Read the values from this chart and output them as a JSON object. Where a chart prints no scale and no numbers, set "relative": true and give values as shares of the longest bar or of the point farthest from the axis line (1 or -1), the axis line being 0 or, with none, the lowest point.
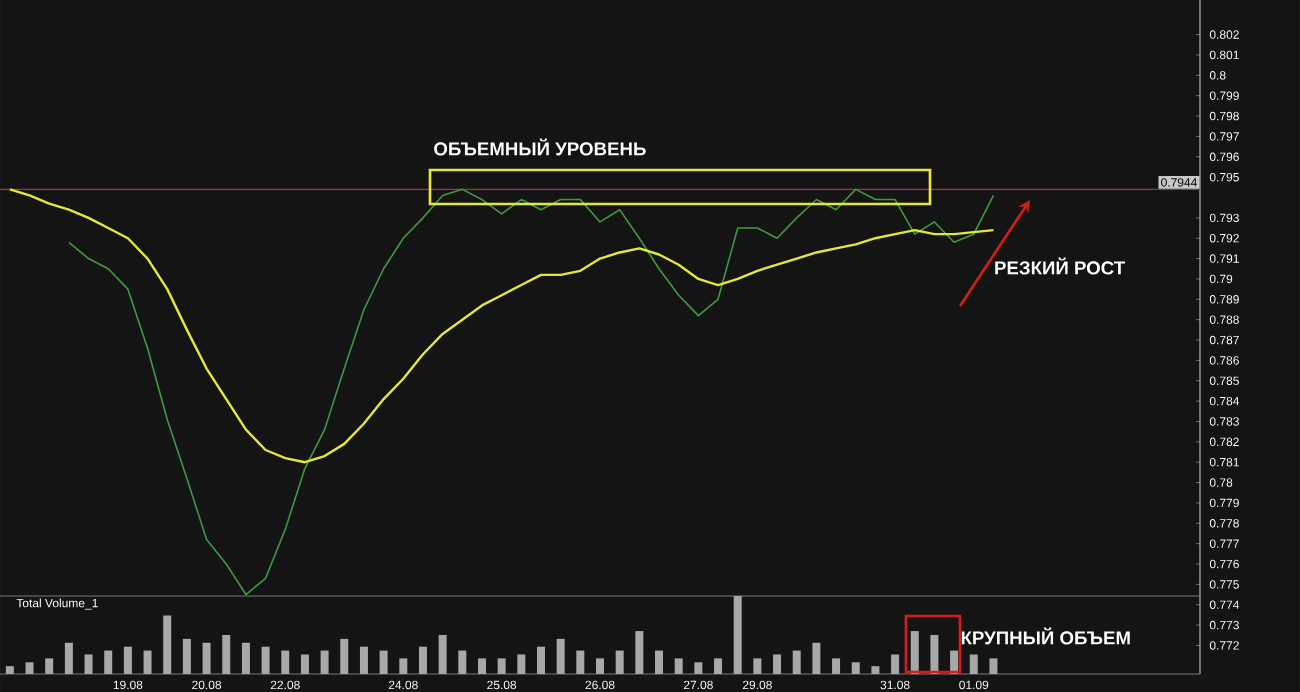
{
  "chart_data": [
    {
      "type": "line",
      "categories": [
        null,
        null,
        null,
        null,
        null,
        null,
        "19.08",
        null,
        null,
        null,
        "20.08",
        null,
        null,
        null,
        "22.08",
        null,
        null,
        null,
        null,
        null,
        "24.08",
        null,
        null,
        null,
        null,
        "25.08",
        null,
        null,
        null,
        null,
        "26.08",
        null,
        null,
        null,
        null,
        "27.08",
        null,
        null,
        "29.08",
        null,
        null,
        null,
        null,
        null,
        null,
        "31.08",
        null,
        null,
        null,
        "01.09",
        null
      ],
      "series": [
        {
          "color": "#3f9a3f",
          "values": [
            null,
            null,
            null,
            0.7918,
            0.791,
            0.7905,
            0.7895,
            0.7866,
            0.7831,
            0.7802,
            0.7772,
            0.776,
            0.7745,
            0.7753,
            0.7777,
            0.7807,
            0.7826,
            0.7856,
            0.7885,
            0.7905,
            0.792,
            0.793,
            0.7941,
            0.7944,
            0.7939,
            0.7932,
            0.7939,
            0.7934,
            0.7939,
            0.7939,
            0.7928,
            0.7934,
            0.792,
            0.7905,
            0.7892,
            0.7882,
            0.789,
            0.7925,
            0.7925,
            0.792,
            0.793,
            0.7939,
            0.7934,
            0.7944,
            0.7939,
            0.7939,
            0.7922,
            0.7928,
            0.7918,
            0.7922,
            0.7941
          ]
        },
        {
          "color": "#e6e63c",
          "values": [
            0.7944,
            0.7941,
            0.7937,
            0.7934,
            0.793,
            0.7925,
            0.792,
            0.791,
            0.7895,
            0.7875,
            0.7856,
            0.7841,
            0.7826,
            0.7816,
            0.7812,
            0.781,
            0.7813,
            0.7819,
            0.7829,
            0.7841,
            0.7851,
            0.7863,
            0.7873,
            0.788,
            0.7887,
            0.7892,
            0.7897,
            0.7902,
            0.7902,
            0.7904,
            0.791,
            0.7913,
            0.7915,
            0.7912,
            0.7907,
            0.79,
            0.7897,
            0.79,
            0.7904,
            0.7907,
            0.791,
            0.7913,
            0.7915,
            0.7917,
            0.792,
            0.7922,
            0.7924,
            0.7922,
            0.7922,
            0.7923,
            0.7924
          ]
        }
      ],
      "ylim": [
        0.7706,
        0.8037
      ],
      "yticks": [
        0.772,
        0.773,
        0.774,
        0.775,
        0.776,
        0.777,
        0.778,
        0.779,
        0.78,
        0.781,
        0.782,
        0.783,
        0.784,
        0.785,
        0.786,
        0.787,
        0.788,
        0.789,
        0.79,
        0.791,
        0.792,
        0.793,
        0.795,
        0.796,
        0.797,
        0.798,
        0.799,
        0.8,
        0.801,
        0.802
      ],
      "ref_lines": [
        {
          "axis": "y",
          "value": 0.7944,
          "label": "0.7944",
          "color": "#a03535"
        }
      ],
      "annotations": [
        "ОБЪЕМНЫЙ УРОВЕНЬ",
        "РЕЗКИЙ РОСТ"
      ]
    },
    {
      "type": "bar",
      "categories": [
        null,
        null,
        null,
        null,
        null,
        null,
        "19.08",
        null,
        null,
        null,
        "20.08",
        null,
        null,
        null,
        "22.08",
        null,
        null,
        null,
        null,
        null,
        "24.08",
        null,
        null,
        null,
        null,
        "25.08",
        null,
        null,
        null,
        null,
        "26.08",
        null,
        null,
        null,
        null,
        "27.08",
        null,
        null,
        "29.08",
        null,
        null,
        null,
        null,
        null,
        null,
        "31.08",
        null,
        null,
        null,
        "01.09",
        null
      ],
      "values": [
        0.1,
        0.15,
        0.2,
        0.4,
        0.25,
        0.3,
        0.35,
        0.3,
        0.75,
        0.45,
        0.4,
        0.5,
        0.4,
        0.35,
        0.3,
        0.25,
        0.3,
        0.45,
        0.35,
        0.3,
        0.2,
        0.35,
        0.5,
        0.3,
        0.2,
        0.2,
        0.25,
        0.35,
        0.45,
        0.3,
        0.2,
        0.3,
        0.55,
        0.3,
        0.2,
        0.15,
        0.2,
        1.0,
        0.2,
        0.25,
        0.3,
        0.4,
        0.2,
        0.15,
        0.1,
        0.25,
        0.55,
        0.5,
        0.3,
        0.25,
        0.2
      ],
      "color": "#a8a8a8",
      "relative": true,
      "tick_labels": false,
      "annotations": [
        "Total Volume_1",
        "КРУПНЫЙ ОБЪЕМ"
      ]
    }
  ]
}
